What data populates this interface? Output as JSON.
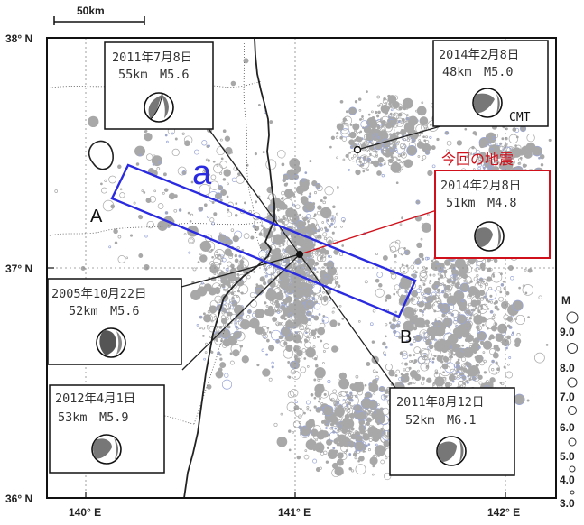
{
  "scale_bar": {
    "label": "50km"
  },
  "latitude_labels": [
    "38° N",
    "37° N",
    "36° N"
  ],
  "longitude_labels": [
    "140° E",
    "141° E",
    "142° E"
  ],
  "magnitude_legend": {
    "title": "M",
    "values": [
      "9.0",
      "8.0",
      "7.0",
      "6.0",
      "5.0",
      "4.0",
      "3.0"
    ]
  },
  "profile": {
    "label": "a",
    "start_label": "A",
    "end_label": "B",
    "color": "#2a2ae0"
  },
  "current_event_heading": "今回の地震",
  "events": [
    {
      "date": "2011年7月8日",
      "detail": "55km　M5.6"
    },
    {
      "date": "2014年2月8日",
      "detail": "48km　M5.0",
      "note": "CMT"
    },
    {
      "date": "2014年2月8日",
      "detail": "51km　M4.8",
      "highlight": true
    },
    {
      "date": "2005年10月22日",
      "detail": "52km　M5.6"
    },
    {
      "date": "2012年4月1日",
      "detail": "53km　M5.9"
    },
    {
      "date": "2011年8月12日",
      "detail": "52km　M6.1"
    }
  ],
  "colors": {
    "seismicity": "#a8a8a8",
    "coastline": "#222222",
    "highlight": "#d0101a",
    "grid": "#888888"
  }
}
